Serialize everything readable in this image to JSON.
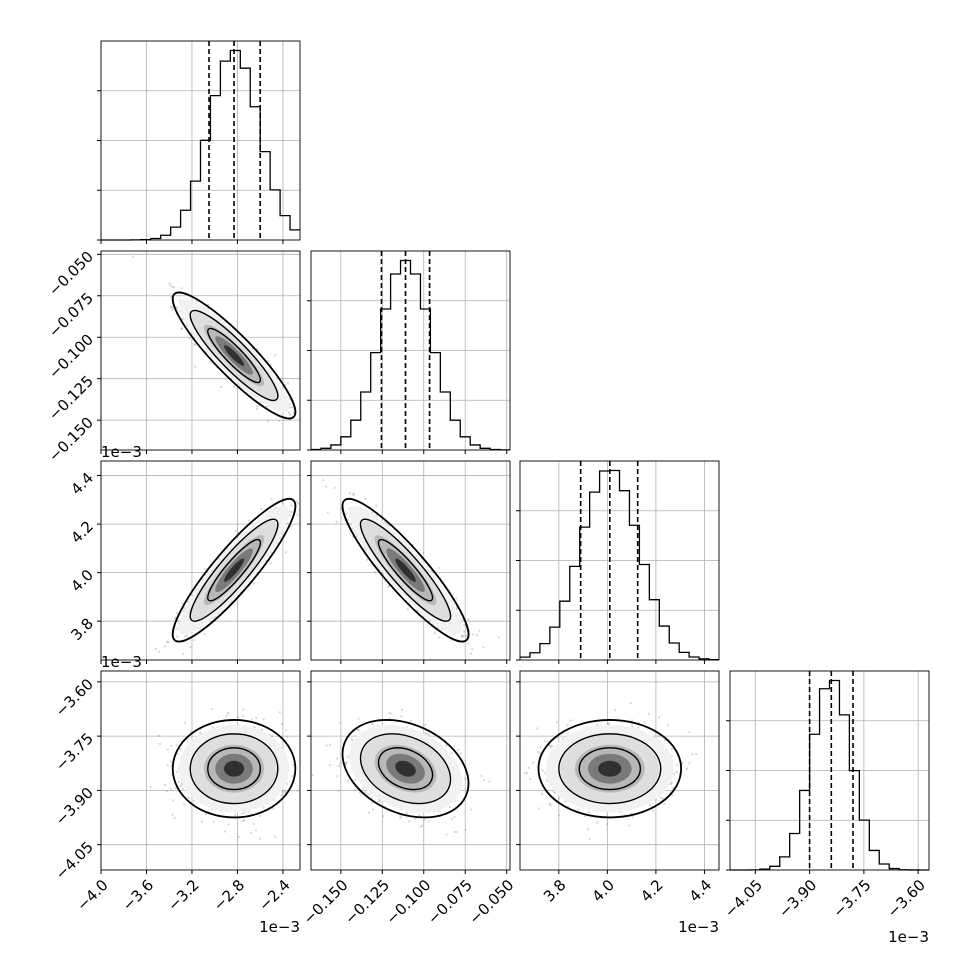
{
  "chart_data": {
    "type": "corner",
    "params": [
      {
        "range": [
          -4.0,
          -2.25
        ],
        "ticks": [
          -4.0,
          -3.6,
          -3.2,
          -2.8,
          -2.4
        ],
        "tick_labels": [
          "−4.0",
          "−3.6",
          "−3.2",
          "−2.8",
          "−2.4"
        ],
        "offset_text": "1e−3",
        "mean": -2.83,
        "sd": 0.22,
        "quantiles": [
          -3.05,
          -2.83,
          -2.6
        ]
      },
      {
        "range": [
          -0.168,
          -0.048
        ],
        "ticks": [
          -0.15,
          -0.125,
          -0.1,
          -0.075,
          -0.05
        ],
        "tick_labels": [
          "−0.150",
          "−0.125",
          "−0.100",
          "−0.075",
          "−0.050"
        ],
        "offset_text": "",
        "mean": -0.111,
        "sd": 0.0155,
        "quantiles": [
          -0.1255,
          -0.111,
          -0.0965
        ]
      },
      {
        "range": [
          3.64,
          4.46
        ],
        "ticks": [
          3.8,
          4.0,
          4.2,
          4.4
        ],
        "tick_labels": [
          "3.8",
          "4.0",
          "4.2",
          "4.4"
        ],
        "offset_text": "1e−3",
        "mean": 4.01,
        "sd": 0.12,
        "quantiles": [
          3.89,
          4.01,
          4.125
        ]
      },
      {
        "range": [
          -4.12,
          -3.57
        ],
        "ticks": [
          -4.05,
          -3.9,
          -3.75,
          -3.6
        ],
        "tick_labels": [
          "−4.05",
          "−3.90",
          "−3.75",
          "−3.60"
        ],
        "offset_text": "1e−3",
        "mean": -3.84,
        "sd": 0.055,
        "quantiles": [
          -3.9,
          -3.84,
          -3.78
        ]
      }
    ],
    "correlations": [
      [
        1.0,
        -0.9,
        0.9,
        0.0
      ],
      [
        -0.9,
        1.0,
        -0.9,
        -0.3
      ],
      [
        0.9,
        -0.9,
        1.0,
        0.0
      ],
      [
        0.0,
        -0.3,
        0.0,
        1.0
      ]
    ],
    "grid": true,
    "colors": {
      "line": "#000000",
      "points": "#8c8c8c",
      "grid": "#b0b0b0"
    }
  }
}
